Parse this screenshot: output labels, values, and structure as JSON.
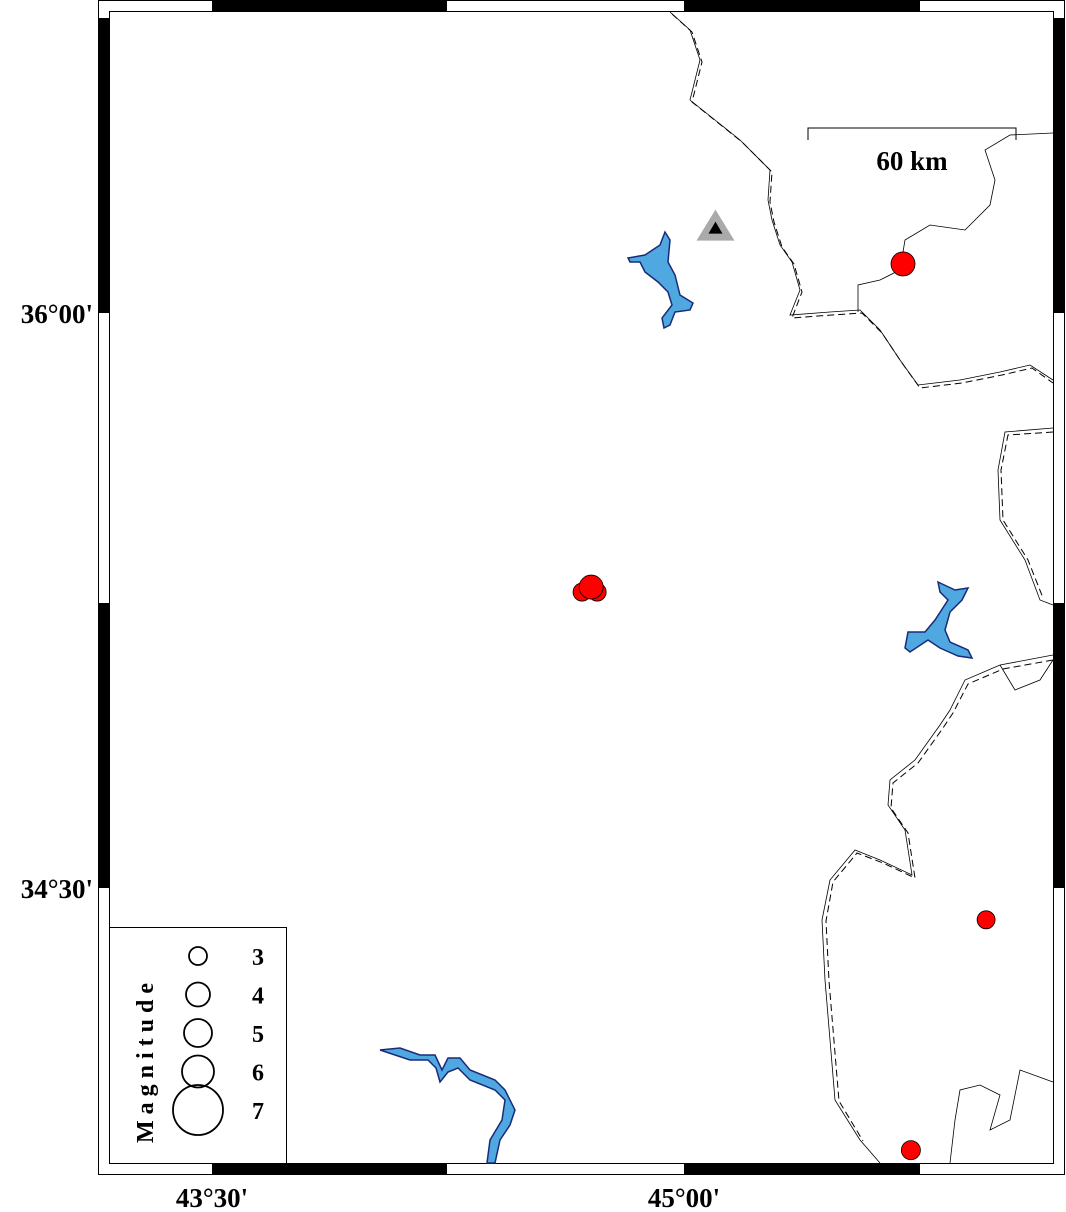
{
  "map": {
    "region": {
      "lon_min": 43.14,
      "lon_max": 46.12,
      "lat_min": 33.77,
      "lat_max": 36.82
    },
    "lon_ticks": [
      {
        "value": 43.5,
        "label": "43°30'"
      },
      {
        "value": 45.0,
        "label": "45°00'"
      }
    ],
    "lat_ticks": [
      {
        "value": 36.0,
        "label": "36°00'"
      },
      {
        "value": 34.5,
        "label": "34°30'"
      }
    ],
    "colors": {
      "event": "#ff0000",
      "water": "#4fa8e0",
      "water_outline": "#1a2a7a",
      "station": "#aaaaaa",
      "station_inner": "#000000"
    },
    "scale_bar": {
      "label": "60 km"
    },
    "station": {
      "lon": 45.1,
      "lat": 36.22,
      "icon": "triangle-icon"
    },
    "events": [
      {
        "lon": 45.696,
        "lat": 36.128,
        "mag": 4
      },
      {
        "lon": 44.676,
        "lat": 35.272,
        "mag": 3
      },
      {
        "lon": 44.724,
        "lat": 35.272,
        "mag": 3
      },
      {
        "lon": 44.705,
        "lat": 35.285,
        "mag": 4
      },
      {
        "lon": 45.96,
        "lat": 34.417,
        "mag": 3
      },
      {
        "lon": 45.721,
        "lat": 33.816,
        "mag": 3.3
      }
    ],
    "legend": {
      "title": "Magnitude",
      "items": [
        {
          "mag": 3,
          "label": "3"
        },
        {
          "mag": 4,
          "label": "4"
        },
        {
          "mag": 5,
          "label": "5"
        },
        {
          "mag": 6,
          "label": "6"
        },
        {
          "mag": 7,
          "label": "7"
        }
      ]
    }
  }
}
